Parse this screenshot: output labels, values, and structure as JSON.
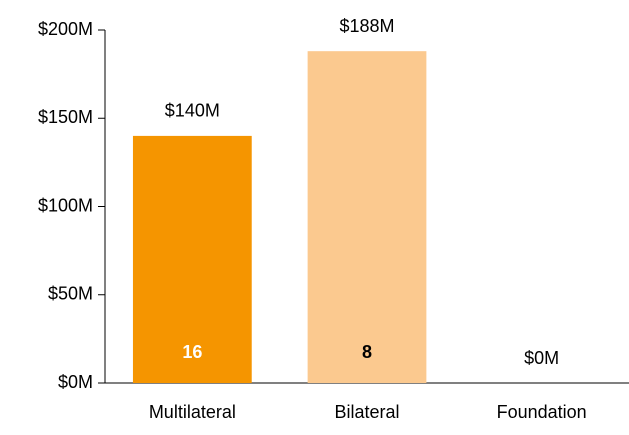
{
  "chart_data": {
    "type": "bar",
    "categories": [
      "Multilateral",
      "Bilateral",
      "Foundation"
    ],
    "values": [
      140,
      188,
      0
    ],
    "value_labels": [
      "$140M",
      "$188M",
      "$0M"
    ],
    "counts": [
      16,
      8,
      null
    ],
    "colors": [
      "#f59500",
      "#fbc98f",
      null
    ],
    "count_label_colors": [
      "#ffffff",
      "#000000",
      null
    ],
    "ylim": [
      0,
      200
    ],
    "yticks": [
      {
        "value": 0,
        "label": "$0M"
      },
      {
        "value": 50,
        "label": "$50M"
      },
      {
        "value": 100,
        "label": "$100M"
      },
      {
        "value": 150,
        "label": "$150M"
      },
      {
        "value": 200,
        "label": "$200M"
      }
    ],
    "grid": false
  }
}
